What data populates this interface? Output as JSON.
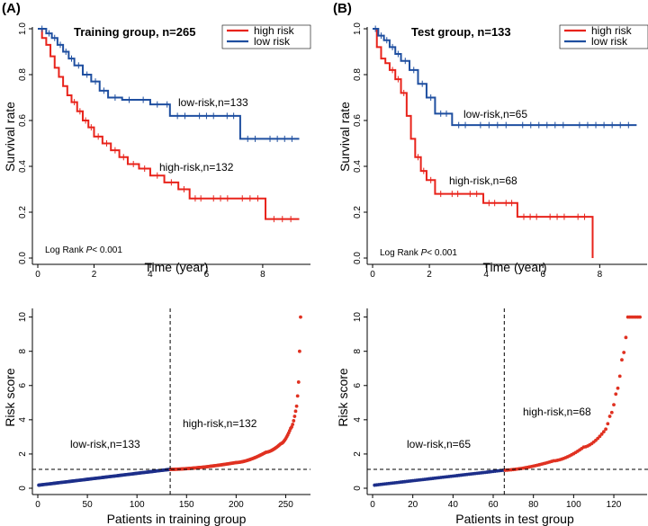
{
  "colors": {
    "high": "#e8231b",
    "low": "#1f4fa0",
    "riskHigh": "#e03121",
    "riskLow": "#1d2f8a"
  },
  "chart_data": [
    {
      "type": "line",
      "panel": "(A)",
      "title": "Training group, n=265",
      "xlabel": "Time (year)",
      "ylabel": "Survival rate",
      "xlim": [
        0,
        9.7
      ],
      "ylim": [
        0,
        1
      ],
      "xticks": [
        0,
        2,
        4,
        6,
        8
      ],
      "yticks": [
        0.0,
        0.2,
        0.4,
        0.6,
        0.8,
        1.0
      ],
      "legend": [
        "high risk",
        "low risk"
      ],
      "legend_position": "top-right",
      "logrank": {
        "prefix": "Log Rank ",
        "p": "P",
        "suffix": "< 0.001"
      },
      "series": [
        {
          "name": "high risk",
          "label": "high-risk,n=132",
          "x": [
            0,
            0.15,
            0.3,
            0.45,
            0.6,
            0.75,
            0.9,
            1.05,
            1.2,
            1.4,
            1.6,
            1.8,
            2.0,
            2.3,
            2.6,
            2.9,
            3.2,
            3.6,
            4.0,
            4.5,
            5.0,
            5.4,
            6.0,
            7.0,
            8.1,
            9.3
          ],
          "y": [
            1.0,
            0.96,
            0.93,
            0.88,
            0.83,
            0.79,
            0.75,
            0.71,
            0.68,
            0.64,
            0.6,
            0.57,
            0.53,
            0.5,
            0.47,
            0.44,
            0.41,
            0.39,
            0.36,
            0.33,
            0.3,
            0.26,
            0.26,
            0.26,
            0.17,
            0.17
          ]
        },
        {
          "name": "low risk",
          "label": "low-risk,n=133",
          "x": [
            0,
            0.3,
            0.5,
            0.7,
            0.9,
            1.1,
            1.3,
            1.6,
            1.9,
            2.2,
            2.5,
            3.0,
            3.5,
            4.0,
            4.5,
            4.7,
            5.5,
            6.5,
            7.2,
            8.0,
            9.3
          ],
          "y": [
            1.0,
            0.98,
            0.96,
            0.93,
            0.9,
            0.87,
            0.84,
            0.8,
            0.77,
            0.73,
            0.7,
            0.69,
            0.69,
            0.67,
            0.67,
            0.62,
            0.62,
            0.62,
            0.52,
            0.52,
            0.52
          ]
        }
      ]
    },
    {
      "type": "line",
      "panel": "(B)",
      "title": "Test group, n=133",
      "xlabel": "Time (year)",
      "ylabel": "Survival rate",
      "xlim": [
        0,
        9.7
      ],
      "ylim": [
        0,
        1
      ],
      "xticks": [
        0,
        2,
        4,
        6,
        8
      ],
      "yticks": [
        0.0,
        0.2,
        0.4,
        0.6,
        0.8,
        1.0
      ],
      "legend": [
        "high risk",
        "low risk"
      ],
      "legend_position": "top-right",
      "logrank": {
        "prefix": "Log Rank ",
        "p": "P",
        "suffix": "< 0.001"
      },
      "series": [
        {
          "name": "high risk",
          "label": "high-risk,n=68",
          "x": [
            0,
            0.15,
            0.3,
            0.45,
            0.6,
            0.8,
            1.0,
            1.2,
            1.35,
            1.5,
            1.7,
            1.9,
            2.2,
            2.6,
            3.2,
            3.9,
            4.5,
            5.1,
            6.0,
            7.0,
            7.7,
            7.75
          ],
          "y": [
            1.0,
            0.92,
            0.87,
            0.85,
            0.82,
            0.78,
            0.72,
            0.62,
            0.52,
            0.44,
            0.38,
            0.34,
            0.28,
            0.28,
            0.28,
            0.24,
            0.24,
            0.18,
            0.18,
            0.18,
            0.18,
            0.0
          ]
        },
        {
          "name": "low risk",
          "label": "low-risk,n=65",
          "x": [
            0,
            0.2,
            0.4,
            0.6,
            0.8,
            1.0,
            1.3,
            1.6,
            1.9,
            2.2,
            2.8,
            3.5,
            5.0,
            7.0,
            9.3
          ],
          "y": [
            1.0,
            0.97,
            0.95,
            0.92,
            0.89,
            0.86,
            0.82,
            0.76,
            0.7,
            0.63,
            0.58,
            0.58,
            0.58,
            0.58,
            0.58
          ]
        }
      ]
    },
    {
      "type": "scatter",
      "xlabel": "Patients in training group",
      "ylabel": "Risk score",
      "xlim": [
        0,
        275
      ],
      "ylim": [
        0,
        10.4
      ],
      "xticks": [
        0,
        50,
        100,
        150,
        200,
        250
      ],
      "yticks": [
        0,
        2,
        4,
        6,
        8,
        10
      ],
      "n_patients": 265,
      "cutoff_index": 133,
      "cutoff_score": 1.1,
      "labels": {
        "low": "low-risk,n=133",
        "high": "high-risk,n=132"
      },
      "curve_points": [
        [
          1,
          0.18
        ],
        [
          133,
          1.1
        ],
        [
          200,
          1.5
        ],
        [
          230,
          2.1
        ],
        [
          245,
          2.6
        ],
        [
          255,
          3.5
        ],
        [
          260,
          4.5
        ],
        [
          263,
          6.2
        ],
        [
          264,
          8.0
        ],
        [
          265,
          10.0
        ]
      ]
    },
    {
      "type": "scatter",
      "xlabel": "Patients in test group",
      "ylabel": "Risk score",
      "xlim": [
        0,
        137
      ],
      "ylim": [
        0,
        10.4
      ],
      "xticks": [
        0,
        20,
        40,
        60,
        80,
        100,
        120
      ],
      "yticks": [
        0,
        2,
        4,
        6,
        8,
        10
      ],
      "n_patients": 133,
      "cutoff_index": 65,
      "cutoff_score": 1.1,
      "labels": {
        "low": "low-risk,n=65",
        "high": "high-risk,n=68"
      },
      "curve_points": [
        [
          1,
          0.18
        ],
        [
          65,
          1.05
        ],
        [
          90,
          1.6
        ],
        [
          105,
          2.4
        ],
        [
          115,
          3.3
        ],
        [
          118,
          4.2
        ],
        [
          121,
          5.5
        ],
        [
          124,
          7.5
        ],
        [
          127,
          10.0
        ],
        [
          133,
          10.0
        ]
      ]
    }
  ]
}
